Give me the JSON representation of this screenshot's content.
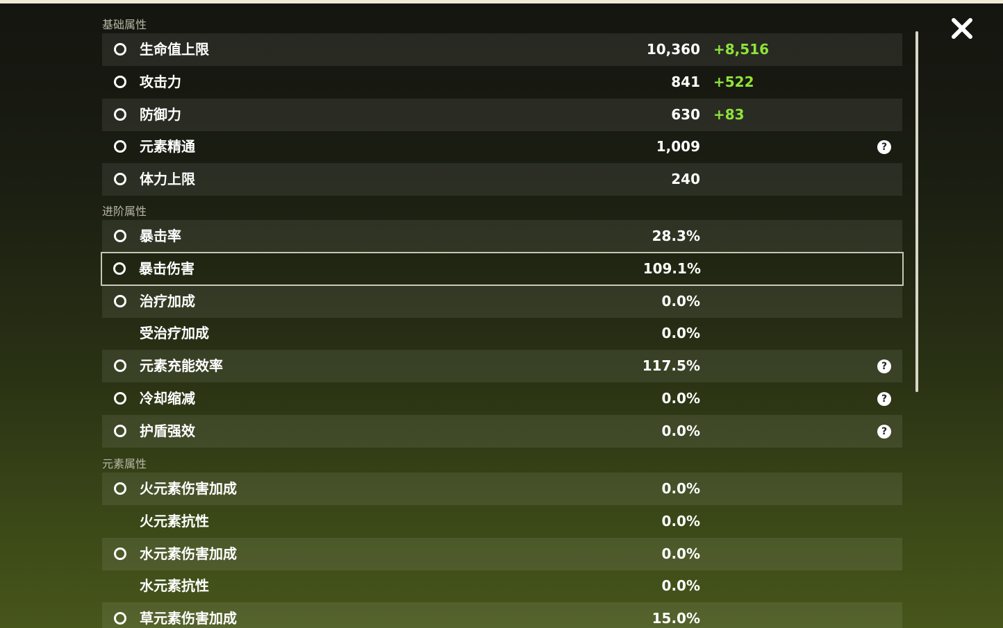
{
  "sections": [
    {
      "title": "基础属性",
      "rows": [
        {
          "label": "生命值上限",
          "value": "10,360",
          "bonus": "+8,516"
        },
        {
          "label": "攻击力",
          "value": "841",
          "bonus": "+522"
        },
        {
          "label": "防御力",
          "value": "630",
          "bonus": "+83"
        },
        {
          "label": "元素精通",
          "value": "1,009",
          "help": "?"
        },
        {
          "label": "体力上限",
          "value": "240"
        }
      ]
    },
    {
      "title": "进阶属性",
      "rows": [
        {
          "label": "暴击率",
          "value": "28.3%"
        },
        {
          "label": "暴击伤害",
          "value": "109.1%",
          "selected": true
        },
        {
          "label": "治疗加成",
          "value": "0.0%"
        },
        {
          "label": "受治疗加成",
          "value": "0.0%"
        },
        {
          "label": "元素充能效率",
          "value": "117.5%",
          "help": "?"
        },
        {
          "label": "冷却缩减",
          "value": "0.0%",
          "help": "?"
        },
        {
          "label": "护盾强效",
          "value": "0.0%",
          "help": "?"
        }
      ]
    },
    {
      "title": "元素属性",
      "rows": [
        {
          "label": "火元素伤害加成",
          "value": "0.0%"
        },
        {
          "label": "火元素抗性",
          "value": "0.0%"
        },
        {
          "label": "水元素伤害加成",
          "value": "0.0%"
        },
        {
          "label": "水元素抗性",
          "value": "0.0%"
        },
        {
          "label": "草元素伤害加成",
          "value": "15.0%"
        }
      ]
    }
  ]
}
